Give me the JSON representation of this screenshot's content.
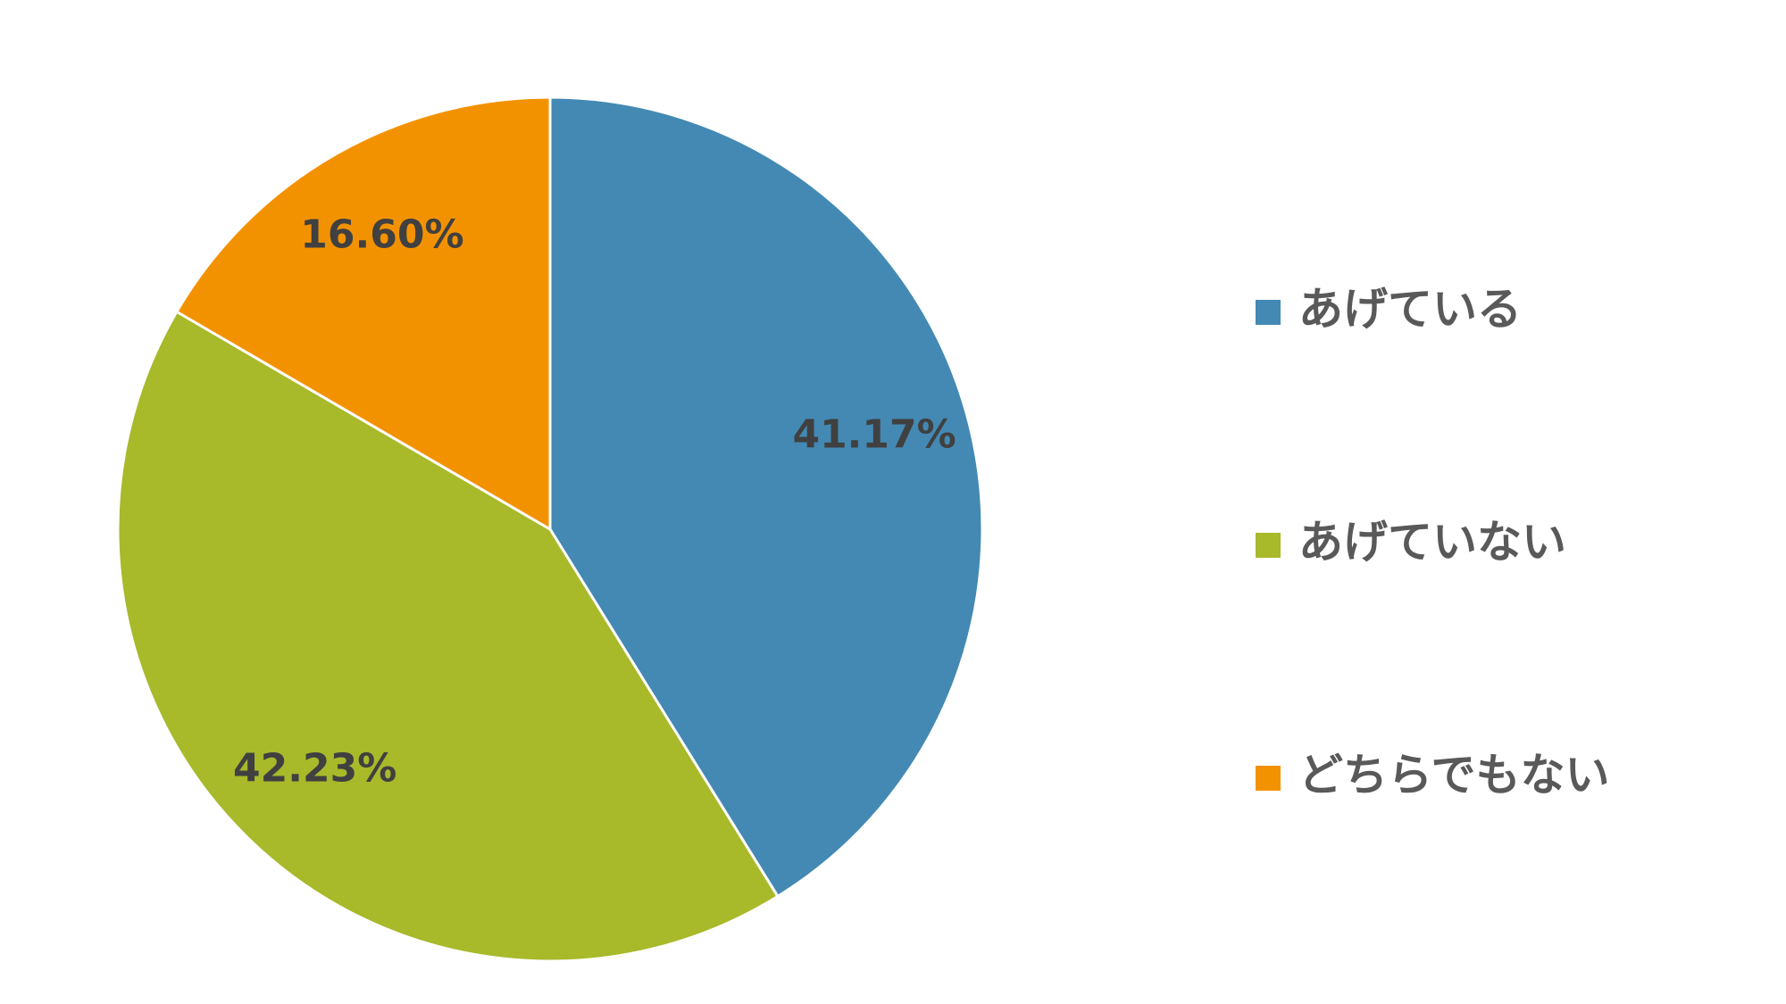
{
  "chart_data": {
    "type": "pie",
    "categories": [
      "あげている",
      "あげていない",
      "どちらでもない"
    ],
    "values": [
      41.17,
      42.23,
      16.6
    ],
    "value_labels": [
      "41.17%",
      "42.23%",
      "16.60%"
    ],
    "colors": [
      "#4389b3",
      "#a8b92a",
      "#f39200"
    ],
    "legend": "right"
  }
}
